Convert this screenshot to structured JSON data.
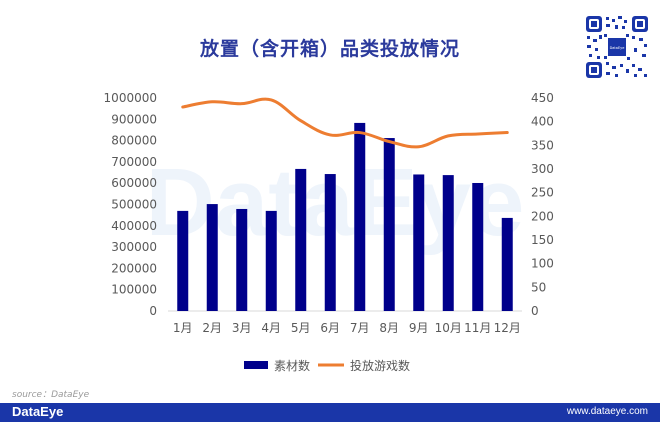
{
  "header": {
    "title": "放置（含开箱）品类投放情况"
  },
  "source": "source：DataEye",
  "footer": {
    "brand": "DataEye",
    "url": "www.dataeye.com"
  },
  "watermark": "DataEye",
  "colors": {
    "bar": "#00008b",
    "line": "#ed7d31",
    "title": "#2b3a9c",
    "footer": "#1a36a8"
  },
  "chart_data": {
    "type": "bar+line",
    "title": "放置（含开箱）品类投放情况",
    "categories": [
      "1月",
      "2月",
      "3月",
      "4月",
      "5月",
      "6月",
      "7月",
      "8月",
      "9月",
      "10月",
      "11月",
      "12月"
    ],
    "series": [
      {
        "name": "素材数",
        "type": "bar",
        "axis": "left",
        "values": [
          470000,
          502000,
          479000,
          470000,
          667000,
          643000,
          883000,
          812000,
          641000,
          638000,
          601000,
          437000
        ]
      },
      {
        "name": "投放游戏数",
        "type": "line",
        "axis": "right",
        "values": [
          431,
          442,
          438,
          446,
          402,
          372,
          377,
          358,
          347,
          370,
          374,
          377
        ]
      }
    ],
    "y_left": {
      "ylim": [
        0,
        1000000
      ],
      "ticks": [
        "0",
        "100000",
        "200000",
        "300000",
        "400000",
        "500000",
        "600000",
        "700000",
        "800000",
        "900000",
        "1000000"
      ]
    },
    "y_right": {
      "ylim": [
        0,
        450
      ],
      "ticks": [
        "0",
        "50",
        "100",
        "150",
        "200",
        "250",
        "300",
        "350",
        "400",
        "450"
      ]
    },
    "xlabel": "",
    "ylabel": "",
    "legend": {
      "position": "bottom",
      "entries": [
        "素材数",
        "投放游戏数"
      ]
    },
    "grid": false
  }
}
